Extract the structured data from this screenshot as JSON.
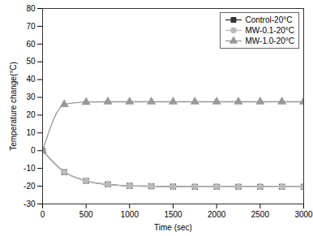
{
  "chart_data": {
    "type": "line",
    "x_label": "Time (sec)",
    "y_label": "Temperature change(°C)",
    "x": [
      0,
      250,
      500,
      750,
      1000,
      1250,
      1500,
      1750,
      2000,
      2250,
      2500,
      2750,
      3000
    ],
    "xlim": [
      0,
      3000
    ],
    "xticks": [
      0,
      500,
      1000,
      1500,
      2000,
      2500,
      3000
    ],
    "ylim": [
      -30,
      80
    ],
    "yticks": [
      -30,
      -20,
      -10,
      0,
      10,
      20,
      30,
      40,
      50,
      60,
      70,
      80
    ],
    "grid": false,
    "legend": "upper right",
    "series": [
      {
        "name": "Control-20°C",
        "color": "#333333",
        "marker": "square",
        "values": [
          0,
          -12,
          -17,
          -19,
          -19.8,
          -20,
          -20.2,
          -20.3,
          -20.3,
          -20.3,
          -20.3,
          -20.3,
          -20.3
        ]
      },
      {
        "name": "MW-0.1-20°C",
        "color": "#bbbbbb",
        "marker": "circle",
        "values": [
          0,
          -12,
          -17,
          -19,
          -19.8,
          -20,
          -20.2,
          -20.3,
          -20.3,
          -20.3,
          -20.3,
          -20.3,
          -20.3
        ]
      },
      {
        "name": "MW-1.0-20°C",
        "color": "#999999",
        "marker": "triangle",
        "values": [
          0,
          26,
          27.3,
          27.5,
          27.5,
          27.5,
          27.5,
          27.5,
          27.5,
          27.5,
          27.5,
          27.5,
          27.5
        ]
      }
    ]
  }
}
